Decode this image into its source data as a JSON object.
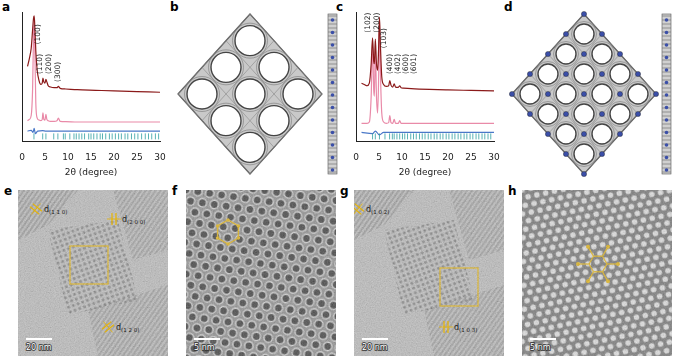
{
  "letters": [
    "a",
    "b",
    "c",
    "d",
    "e",
    "f",
    "g",
    "h"
  ],
  "chart_data": [
    {
      "type": "line",
      "x_label": "2θ (degree)",
      "xlim": [
        0,
        30
      ],
      "xticks": [
        0,
        5,
        10,
        15,
        20,
        25,
        30
      ],
      "ylim": [
        0,
        100
      ],
      "tick_labels": "x",
      "grid": false,
      "series": [
        {
          "color": "#8b1a1a",
          "x": [
            1.2,
            1.6,
            2.0,
            2.3,
            2.5,
            2.65,
            2.8,
            3.0,
            3.3,
            3.7,
            4.1,
            4.4,
            4.55,
            4.75,
            5.0,
            5.2,
            5.4,
            5.7,
            6.2,
            7.0,
            7.6,
            7.9,
            8.3,
            9.5,
            12,
            16,
            20,
            25,
            30
          ],
          "values": [
            58,
            64,
            72,
            86,
            95,
            97,
            88,
            70,
            55,
            47,
            44,
            45,
            49,
            46,
            45,
            48,
            46,
            43,
            42,
            41.5,
            41.5,
            42.5,
            41,
            40.5,
            40,
            39.5,
            39,
            38.5,
            38
          ]
        },
        {
          "color": "#e98aa8",
          "x": [
            1.2,
            1.6,
            2.0,
            2.3,
            2.5,
            2.65,
            2.8,
            3.0,
            3.3,
            3.7,
            4.1,
            4.4,
            4.55,
            4.75,
            5.0,
            5.2,
            5.4,
            5.7,
            6.2,
            7.0,
            7.6,
            7.9,
            8.3,
            9.5,
            12,
            16,
            20,
            25,
            30
          ],
          "values": [
            16,
            17,
            20,
            40,
            80,
            93,
            70,
            30,
            18,
            16.5,
            16,
            17,
            22,
            17,
            16.5,
            21,
            17,
            16,
            15.5,
            15.5,
            16,
            18,
            15.5,
            15.3,
            15,
            15,
            15,
            15,
            15
          ]
        },
        {
          "color": "#4a78c8",
          "x": [
            1.2,
            2.0,
            2.4,
            2.65,
            2.9,
            3.4,
            4.5,
            5.2,
            8,
            15,
            30
          ],
          "values": [
            8,
            8.5,
            7,
            10,
            6,
            8,
            8.3,
            8,
            8,
            8,
            8
          ]
        }
      ],
      "reflections": {
        "color": "#2e9ea0",
        "x": [
          2.6,
          4.5,
          5.2,
          6.9,
          7.8,
          9.0,
          9.4,
          10.4,
          11.3,
          11.8,
          12.4,
          13.0,
          13.6,
          14.5,
          15.0,
          15.6,
          16.3,
          17.0,
          17.5,
          18.2,
          19.0,
          19.6,
          20.3,
          21.0,
          21.6,
          22.4,
          23.0,
          23.8,
          24.5,
          25.2,
          26.0,
          26.8,
          27.5,
          28.2,
          29.0,
          29.7
        ]
      },
      "annotations": [
        {
          "text": "(100)",
          "x": 3.4,
          "y": 75
        },
        {
          "text": "(110)",
          "x": 4.0,
          "y": 52
        },
        {
          "text": "(200)",
          "x": 5.9,
          "y": 52
        },
        {
          "text": "(300)",
          "x": 7.9,
          "y": 46
        }
      ]
    },
    {
      "type": "line",
      "x_label": "2θ (degree)",
      "xlim": [
        0,
        30
      ],
      "xticks": [
        0,
        5,
        10,
        15,
        20,
        25,
        30
      ],
      "ylim": [
        0,
        100
      ],
      "tick_labels": "x",
      "grid": false,
      "series": [
        {
          "color": "#8b1a1a",
          "x": [
            1.2,
            1.8,
            2.4,
            2.9,
            3.3,
            3.6,
            3.85,
            4.0,
            4.2,
            4.45,
            4.7,
            4.9,
            5.1,
            5.3,
            5.6,
            6.0,
            6.6,
            7.1,
            7.35,
            7.6,
            8.0,
            8.3,
            8.6,
            9.2,
            9.5,
            9.8,
            10.3,
            12,
            16,
            20,
            25,
            30
          ],
          "values": [
            45,
            44,
            43,
            45,
            60,
            80,
            62,
            60,
            79,
            60,
            55,
            70,
            96,
            75,
            50,
            44,
            42.5,
            43,
            47,
            43.5,
            42,
            44.5,
            42,
            41.8,
            43,
            41.5,
            41.2,
            40.8,
            40.2,
            39.8,
            39.4,
            39
          ]
        },
        {
          "color": "#e98aa8",
          "x": [
            1.2,
            1.8,
            2.4,
            2.9,
            3.3,
            3.6,
            3.85,
            4.0,
            4.2,
            4.45,
            4.7,
            4.9,
            5.1,
            5.3,
            5.6,
            6.0,
            6.6,
            7.1,
            7.35,
            7.6,
            8.0,
            8.3,
            8.6,
            9.2,
            9.5,
            9.8,
            10.3,
            12,
            16,
            20,
            25,
            30
          ],
          "values": [
            14,
            14,
            14,
            15,
            35,
            75,
            40,
            35,
            72,
            35,
            22,
            45,
            92,
            55,
            22,
            15,
            14,
            14.5,
            20,
            14.5,
            14,
            17,
            14,
            14,
            16,
            14,
            14,
            14,
            14,
            14,
            14,
            14
          ]
        },
        {
          "color": "#4a78c8",
          "x": [
            1.2,
            3.6,
            4.2,
            5.1,
            6,
            10,
            30
          ],
          "values": [
            7,
            6,
            8,
            5,
            7,
            7,
            7
          ]
        }
      ],
      "reflections": {
        "color": "#2e9ea0",
        "x": [
          3.6,
          4.2,
          5.1,
          6.3,
          7.3,
          7.9,
          8.3,
          8.9,
          9.5,
          10.1,
          10.6,
          11.2,
          11.9,
          12.5,
          13.1,
          13.8,
          14.4,
          15.0,
          15.7,
          16.3,
          17.0,
          17.6,
          18.3,
          18.9,
          19.6,
          20.2,
          20.9,
          21.5,
          22.2,
          22.8,
          23.5,
          24.1,
          24.8,
          25.4,
          26.1,
          26.7,
          27.4,
          28.0,
          28.7,
          29.3
        ]
      },
      "annotations": [
        {
          "text": "(102)",
          "x": 2.6,
          "y": 84
        },
        {
          "text": "(200)",
          "x": 4.5,
          "y": 84
        },
        {
          "text": "(103)",
          "x": 6.2,
          "y": 72
        },
        {
          "text": "(400)",
          "x": 7.3,
          "y": 52
        },
        {
          "text": "(402)",
          "x": 9.1,
          "y": 52
        },
        {
          "text": "(600)",
          "x": 10.9,
          "y": 52
        },
        {
          "text": "(601)",
          "x": 12.7,
          "y": 52
        }
      ]
    }
  ],
  "micrographs": [
    {
      "scale_bar": "20 nm",
      "d_labels": [
        {
          "symbol": "d",
          "index": "(1 1 0)"
        },
        {
          "symbol": "d",
          "index": "(2 0 0)"
        },
        {
          "symbol": "d",
          "index": "(1 2 0)"
        }
      ]
    },
    {
      "scale_bar": "5 nm"
    },
    {
      "scale_bar": "20 nm",
      "d_labels": [
        {
          "symbol": "d",
          "index": "(1 0 2)"
        },
        {
          "symbol": "d",
          "index": "(1 0 3)"
        }
      ]
    },
    {
      "scale_bar": "5 nm"
    }
  ]
}
